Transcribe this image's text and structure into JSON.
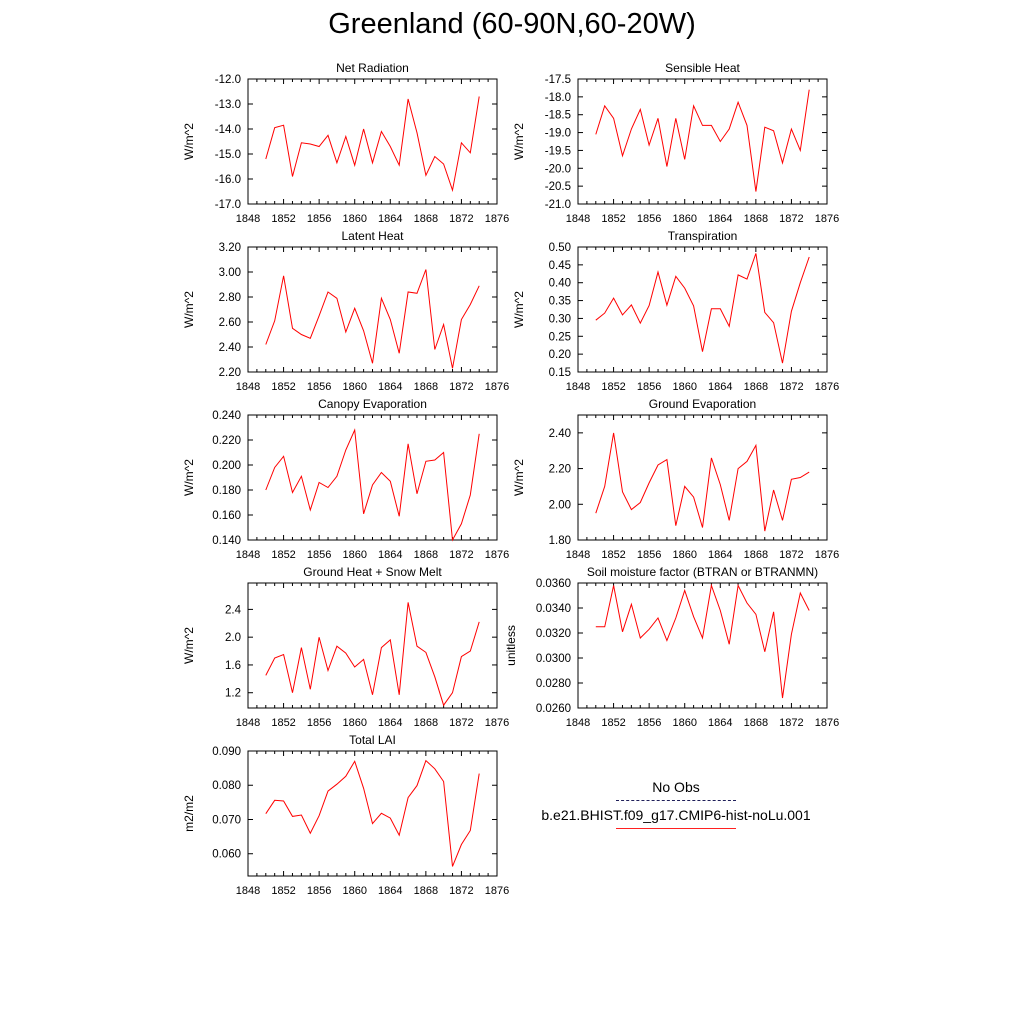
{
  "page": {
    "title": "Greenland (60-90N,60-20W)"
  },
  "legend": {
    "obs_label": "No Obs",
    "obs_color": "#1f1f5a",
    "run_label": "b.e21.BHIST.f09_g17.CMIP6-hist-noLu.001",
    "run_color": "#ff0000"
  },
  "chart_data": [
    {
      "type": "line",
      "title": "Net Radiation",
      "ylabel": "W/m^2",
      "xlim": [
        1848,
        1876
      ],
      "ylim": [
        -17.0,
        -12.0
      ],
      "x_ticks": [
        1848,
        1852,
        1856,
        1860,
        1864,
        1868,
        1872,
        1876
      ],
      "y_ticks": [
        "-17.0",
        "-16.0",
        "-15.0",
        "-14.0",
        "-13.0",
        "-12.0"
      ],
      "x": [
        1850,
        1851,
        1852,
        1853,
        1854,
        1855,
        1856,
        1857,
        1858,
        1859,
        1860,
        1861,
        1862,
        1863,
        1864,
        1865,
        1866,
        1867,
        1868,
        1869,
        1870,
        1871,
        1872,
        1873,
        1874
      ],
      "series": [
        {
          "name": "b.e21.BHIST.f09_g17.CMIP6-hist-noLu.001",
          "color": "#ff0000",
          "values": [
            -15.2,
            -13.95,
            -13.85,
            -15.9,
            -14.55,
            -14.6,
            -14.7,
            -14.25,
            -15.35,
            -14.3,
            -15.45,
            -14.0,
            -15.35,
            -14.1,
            -14.7,
            -15.45,
            -12.8,
            -14.15,
            -15.85,
            -15.1,
            -15.4,
            -16.45,
            -14.55,
            -14.95,
            -12.7
          ]
        }
      ]
    },
    {
      "type": "line",
      "title": "Sensible Heat",
      "ylabel": "W/m^2",
      "xlim": [
        1848,
        1876
      ],
      "ylim": [
        -21.0,
        -17.5
      ],
      "x_ticks": [
        1848,
        1852,
        1856,
        1860,
        1864,
        1868,
        1872,
        1876
      ],
      "y_ticks": [
        "-21.0",
        "-20.5",
        "-20.0",
        "-19.5",
        "-19.0",
        "-18.5",
        "-18.0",
        "-17.5"
      ],
      "x": [
        1850,
        1851,
        1852,
        1853,
        1854,
        1855,
        1856,
        1857,
        1858,
        1859,
        1860,
        1861,
        1862,
        1863,
        1864,
        1865,
        1866,
        1867,
        1868,
        1869,
        1870,
        1871,
        1872,
        1873,
        1874
      ],
      "series": [
        {
          "name": "b.e21.BHIST.f09_g17.CMIP6-hist-noLu.001",
          "color": "#ff0000",
          "values": [
            -19.05,
            -18.25,
            -18.6,
            -19.65,
            -18.9,
            -18.35,
            -19.35,
            -18.6,
            -19.95,
            -18.6,
            -19.75,
            -18.25,
            -18.8,
            -18.8,
            -19.25,
            -18.9,
            -18.15,
            -18.8,
            -20.65,
            -18.85,
            -18.95,
            -19.85,
            -18.9,
            -19.5,
            -17.8
          ]
        }
      ]
    },
    {
      "type": "line",
      "title": "Latent Heat",
      "ylabel": "W/m^2",
      "xlim": [
        1848,
        1876
      ],
      "ylim": [
        2.2,
        3.2
      ],
      "x_ticks": [
        1848,
        1852,
        1856,
        1860,
        1864,
        1868,
        1872,
        1876
      ],
      "y_ticks": [
        "2.20",
        "2.40",
        "2.60",
        "2.80",
        "3.00",
        "3.20"
      ],
      "x": [
        1850,
        1851,
        1852,
        1853,
        1854,
        1855,
        1856,
        1857,
        1858,
        1859,
        1860,
        1861,
        1862,
        1863,
        1864,
        1865,
        1866,
        1867,
        1868,
        1869,
        1870,
        1871,
        1872,
        1873,
        1874
      ],
      "series": [
        {
          "name": "b.e21.BHIST.f09_g17.CMIP6-hist-noLu.001",
          "color": "#ff0000",
          "values": [
            2.42,
            2.61,
            2.97,
            2.55,
            2.5,
            2.47,
            2.65,
            2.84,
            2.79,
            2.52,
            2.71,
            2.53,
            2.27,
            2.79,
            2.62,
            2.35,
            2.84,
            2.83,
            3.02,
            2.38,
            2.58,
            2.23,
            2.62,
            2.74,
            2.89
          ]
        }
      ]
    },
    {
      "type": "line",
      "title": "Transpiration",
      "ylabel": "W/m^2",
      "xlim": [
        1848,
        1876
      ],
      "ylim": [
        0.15,
        0.5
      ],
      "x_ticks": [
        1848,
        1852,
        1856,
        1860,
        1864,
        1868,
        1872,
        1876
      ],
      "y_ticks": [
        "0.15",
        "0.20",
        "0.25",
        "0.30",
        "0.35",
        "0.40",
        "0.45",
        "0.50"
      ],
      "x": [
        1850,
        1851,
        1852,
        1853,
        1854,
        1855,
        1856,
        1857,
        1858,
        1859,
        1860,
        1861,
        1862,
        1863,
        1864,
        1865,
        1866,
        1867,
        1868,
        1869,
        1870,
        1871,
        1872,
        1873,
        1874
      ],
      "series": [
        {
          "name": "b.e21.BHIST.f09_g17.CMIP6-hist-noLu.001",
          "color": "#ff0000",
          "values": [
            0.295,
            0.315,
            0.357,
            0.31,
            0.338,
            0.287,
            0.336,
            0.43,
            0.337,
            0.418,
            0.385,
            0.335,
            0.207,
            0.327,
            0.327,
            0.278,
            0.422,
            0.41,
            0.482,
            0.317,
            0.288,
            0.175,
            0.32,
            0.4,
            0.472
          ]
        }
      ]
    },
    {
      "type": "line",
      "title": "Canopy Evaporation",
      "ylabel": "W/m^2",
      "xlim": [
        1848,
        1876
      ],
      "ylim": [
        0.14,
        0.24
      ],
      "x_ticks": [
        1848,
        1852,
        1856,
        1860,
        1864,
        1868,
        1872,
        1876
      ],
      "y_ticks": [
        "0.140",
        "0.160",
        "0.180",
        "0.200",
        "0.220",
        "0.240"
      ],
      "x": [
        1850,
        1851,
        1852,
        1853,
        1854,
        1855,
        1856,
        1857,
        1858,
        1859,
        1860,
        1861,
        1862,
        1863,
        1864,
        1865,
        1866,
        1867,
        1868,
        1869,
        1870,
        1871,
        1872,
        1873,
        1874
      ],
      "series": [
        {
          "name": "b.e21.BHIST.f09_g17.CMIP6-hist-noLu.001",
          "color": "#ff0000",
          "values": [
            0.18,
            0.198,
            0.207,
            0.178,
            0.191,
            0.164,
            0.186,
            0.182,
            0.191,
            0.212,
            0.228,
            0.161,
            0.184,
            0.194,
            0.187,
            0.159,
            0.217,
            0.177,
            0.203,
            0.204,
            0.21,
            0.14,
            0.153,
            0.176,
            0.225
          ]
        }
      ]
    },
    {
      "type": "line",
      "title": "Ground Evaporation",
      "ylabel": "W/m^2",
      "xlim": [
        1848,
        1876
      ],
      "ylim": [
        1.8,
        2.5
      ],
      "x_ticks": [
        1848,
        1852,
        1856,
        1860,
        1864,
        1868,
        1872,
        1876
      ],
      "y_ticks": [
        "1.80",
        "2.00",
        "2.20",
        "2.40"
      ],
      "x": [
        1850,
        1851,
        1852,
        1853,
        1854,
        1855,
        1856,
        1857,
        1858,
        1859,
        1860,
        1861,
        1862,
        1863,
        1864,
        1865,
        1866,
        1867,
        1868,
        1869,
        1870,
        1871,
        1872,
        1873,
        1874
      ],
      "series": [
        {
          "name": "b.e21.BHIST.f09_g17.CMIP6-hist-noLu.001",
          "color": "#ff0000",
          "values": [
            1.95,
            2.1,
            2.4,
            2.07,
            1.97,
            2.01,
            2.12,
            2.22,
            2.25,
            1.88,
            2.1,
            2.04,
            1.87,
            2.26,
            2.11,
            1.91,
            2.2,
            2.24,
            2.33,
            1.85,
            2.08,
            1.91,
            2.14,
            2.15,
            2.18
          ]
        }
      ]
    },
    {
      "type": "line",
      "title": "Ground Heat + Snow Melt",
      "ylabel": "W/m^2",
      "xlim": [
        1848,
        1876
      ],
      "ylim": [
        0.98,
        2.78
      ],
      "x_ticks": [
        1848,
        1852,
        1856,
        1860,
        1864,
        1868,
        1872,
        1876
      ],
      "y_ticks": [
        "1.2",
        "1.6",
        "2.0",
        "2.4"
      ],
      "x": [
        1850,
        1851,
        1852,
        1853,
        1854,
        1855,
        1856,
        1857,
        1858,
        1859,
        1860,
        1861,
        1862,
        1863,
        1864,
        1865,
        1866,
        1867,
        1868,
        1869,
        1870,
        1871,
        1872,
        1873,
        1874
      ],
      "series": [
        {
          "name": "b.e21.BHIST.f09_g17.CMIP6-hist-noLu.001",
          "color": "#ff0000",
          "values": [
            1.45,
            1.7,
            1.75,
            1.2,
            1.85,
            1.25,
            2.0,
            1.52,
            1.87,
            1.77,
            1.57,
            1.68,
            1.17,
            1.85,
            1.96,
            1.17,
            2.5,
            1.87,
            1.78,
            1.43,
            1.02,
            1.2,
            1.72,
            1.8,
            2.22
          ]
        }
      ]
    },
    {
      "type": "line",
      "title": "Soil moisture factor (BTRAN or BTRANMN)",
      "ylabel": "unitless",
      "xlim": [
        1848,
        1876
      ],
      "ylim": [
        0.026,
        0.036
      ],
      "x_ticks": [
        1848,
        1852,
        1856,
        1860,
        1864,
        1868,
        1872,
        1876
      ],
      "y_ticks": [
        "0.0260",
        "0.0280",
        "0.0300",
        "0.0320",
        "0.0340",
        "0.0360"
      ],
      "x": [
        1850,
        1851,
        1852,
        1853,
        1854,
        1855,
        1856,
        1857,
        1858,
        1859,
        1860,
        1861,
        1862,
        1863,
        1864,
        1865,
        1866,
        1867,
        1868,
        1869,
        1870,
        1871,
        1872,
        1873,
        1874
      ],
      "series": [
        {
          "name": "b.e21.BHIST.f09_g17.CMIP6-hist-noLu.001",
          "color": "#ff0000",
          "values": [
            0.0325,
            0.0325,
            0.0358,
            0.0321,
            0.0343,
            0.0316,
            0.0323,
            0.0332,
            0.0314,
            0.0332,
            0.0354,
            0.0333,
            0.0316,
            0.0358,
            0.0338,
            0.0311,
            0.0358,
            0.0344,
            0.0335,
            0.0305,
            0.0337,
            0.0268,
            0.0319,
            0.0352,
            0.0338
          ]
        }
      ]
    },
    {
      "type": "line",
      "title": "Total LAI",
      "ylabel": "m2/m2",
      "xlim": [
        1848,
        1876
      ],
      "ylim": [
        0.0535,
        0.09
      ],
      "x_ticks": [
        1848,
        1852,
        1856,
        1860,
        1864,
        1868,
        1872,
        1876
      ],
      "y_ticks": [
        "0.060",
        "0.070",
        "0.080",
        "0.090"
      ],
      "x": [
        1850,
        1851,
        1852,
        1853,
        1854,
        1855,
        1856,
        1857,
        1858,
        1859,
        1860,
        1861,
        1862,
        1863,
        1864,
        1865,
        1866,
        1867,
        1868,
        1869,
        1870,
        1871,
        1872,
        1873,
        1874
      ],
      "series": [
        {
          "name": "b.e21.BHIST.f09_g17.CMIP6-hist-noLu.001",
          "color": "#ff0000",
          "values": [
            0.0717,
            0.0756,
            0.0754,
            0.0709,
            0.0713,
            0.066,
            0.0711,
            0.0783,
            0.0803,
            0.0826,
            0.087,
            0.0791,
            0.0688,
            0.0718,
            0.0704,
            0.0654,
            0.0764,
            0.0799,
            0.0872,
            0.0848,
            0.0811,
            0.0563,
            0.0627,
            0.0668,
            0.0834
          ]
        }
      ]
    }
  ]
}
